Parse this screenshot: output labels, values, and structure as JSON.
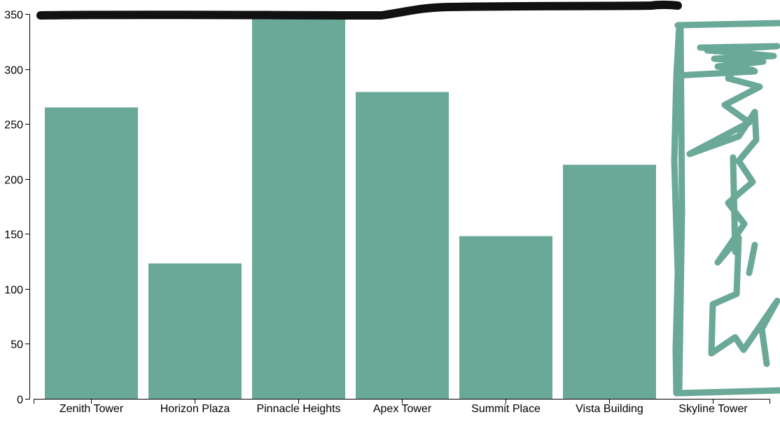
{
  "chart_data": {
    "type": "bar",
    "categories": [
      "Zenith Tower",
      "Horizon Plaza",
      "Pinnacle Heights",
      "Apex Tower",
      "Summit Place",
      "Vista Building",
      "Skyline Tower"
    ],
    "values": [
      265,
      123,
      350,
      279,
      148,
      213,
      null
    ],
    "y_ticks": [
      0,
      50,
      100,
      150,
      200,
      250,
      300,
      350
    ],
    "ylim": [
      0,
      350
    ],
    "title": "",
    "xlabel": "",
    "ylabel": "",
    "grid": false,
    "bar_color": "#6aa898",
    "annotations": [
      {
        "kind": "freehand-line",
        "color": "#000000",
        "description": "thick black scribble along the top at the 350 level"
      },
      {
        "kind": "freehand-scribble",
        "color": "#6aa898",
        "description": "hand-drawn green outline replacing the Skyline Tower bar"
      }
    ]
  }
}
